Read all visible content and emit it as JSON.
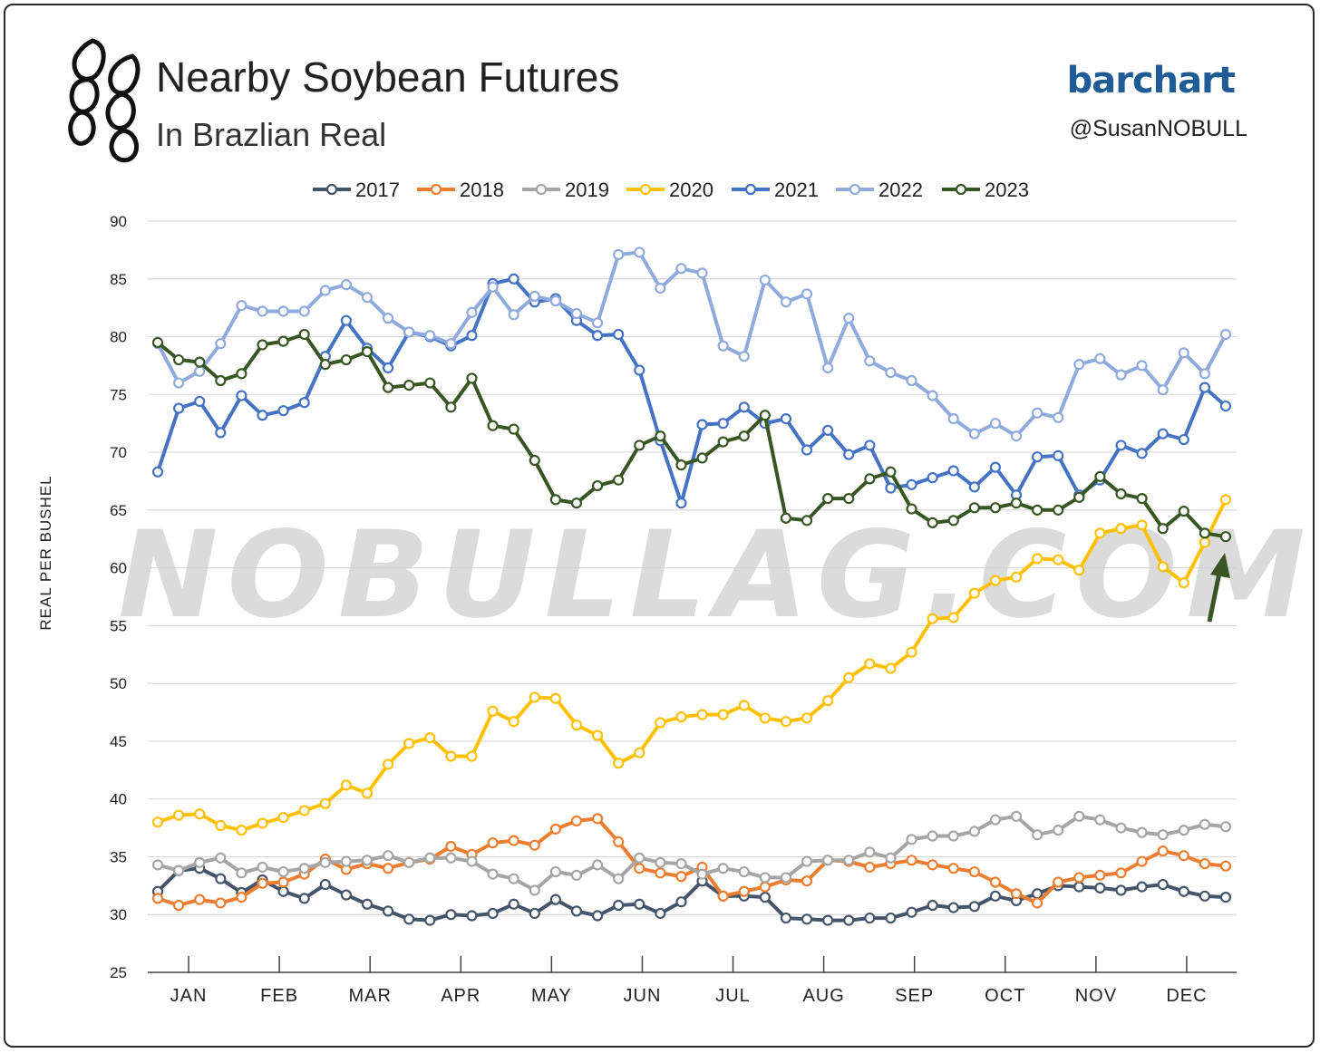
{
  "header": {
    "title": "Nearby Soybean Futures",
    "subtitle": "In Brazlian Real",
    "brand": "barchart",
    "handle": "@SusanNOBULL",
    "logo_icon": "soybean-pods-icon"
  },
  "watermark": "NOBULLAG.COM",
  "colors": {
    "2017": "#44546a",
    "2018": "#ed7d31",
    "2019": "#a5a5a5",
    "2020": "#ffc000",
    "2021": "#4472c4",
    "2022": "#8faadc",
    "2023": "#375623",
    "arrow": "#375623",
    "grid": "#d9d9d9"
  },
  "chart_data": {
    "type": "line",
    "ylabel": "REAL PER BUSHEL",
    "xlabel": "",
    "ylim": [
      25,
      90
    ],
    "yticks": [
      25,
      30,
      35,
      40,
      45,
      50,
      55,
      60,
      65,
      70,
      75,
      80,
      85,
      90
    ],
    "grid": true,
    "legend_position": "top",
    "months": [
      "JAN",
      "FEB",
      "MAR",
      "APR",
      "MAY",
      "JUN",
      "JUL",
      "AUG",
      "SEP",
      "OCT",
      "NOV",
      "DEC"
    ],
    "x_unit": "week of year",
    "series": [
      {
        "name": "2017",
        "values": [
          32.0,
          33.8,
          34.0,
          33.1,
          31.9,
          33.0,
          32.0,
          31.4,
          32.6,
          31.7,
          30.9,
          30.3,
          29.6,
          29.5,
          30.0,
          29.9,
          30.1,
          30.9,
          30.1,
          31.3,
          30.3,
          29.9,
          30.8,
          30.9,
          30.1,
          31.1,
          32.9,
          31.6,
          31.6,
          31.5,
          29.7,
          29.6,
          29.5,
          29.5,
          29.7,
          29.7,
          30.2,
          30.8,
          30.6,
          30.7,
          31.6,
          31.2,
          31.8,
          32.5,
          32.4,
          32.3,
          32.1,
          32.4,
          32.6,
          32.0,
          31.6,
          31.5
        ]
      },
      {
        "name": "2018",
        "values": [
          31.4,
          30.8,
          31.3,
          31.0,
          31.5,
          32.7,
          32.8,
          33.5,
          34.8,
          33.9,
          34.4,
          34.0,
          34.5,
          34.8,
          35.9,
          35.2,
          36.2,
          36.4,
          36.0,
          37.4,
          38.1,
          38.3,
          36.3,
          34.0,
          33.6,
          33.3,
          34.1,
          31.6,
          32.0,
          32.4,
          33.0,
          32.9,
          34.7,
          34.6,
          34.1,
          34.4,
          34.7,
          34.3,
          34.0,
          33.7,
          32.8,
          31.8,
          31.0,
          32.8,
          33.2,
          33.4,
          33.6,
          34.6,
          35.5,
          35.1,
          34.4,
          34.2
        ]
      },
      {
        "name": "2019",
        "values": [
          34.3,
          33.8,
          34.5,
          34.9,
          33.6,
          34.1,
          33.7,
          34.0,
          34.5,
          34.6,
          34.7,
          35.1,
          34.5,
          34.9,
          34.9,
          34.6,
          33.5,
          33.1,
          32.1,
          33.7,
          33.4,
          34.3,
          33.1,
          34.9,
          34.5,
          34.4,
          33.5,
          34.0,
          33.7,
          33.2,
          33.2,
          34.6,
          34.7,
          34.7,
          35.4,
          34.9,
          36.5,
          36.8,
          36.8,
          37.2,
          38.2,
          38.5,
          36.9,
          37.3,
          38.5,
          38.2,
          37.5,
          37.1,
          36.9,
          37.3,
          37.8,
          37.6
        ]
      },
      {
        "name": "2020",
        "values": [
          38.0,
          38.6,
          38.7,
          37.7,
          37.3,
          37.9,
          38.4,
          39.0,
          39.6,
          41.2,
          40.5,
          43.0,
          44.8,
          45.3,
          43.7,
          43.7,
          47.6,
          46.7,
          48.8,
          48.7,
          46.4,
          45.5,
          43.1,
          44.0,
          46.6,
          47.1,
          47.3,
          47.3,
          48.1,
          47.0,
          46.7,
          47.0,
          48.5,
          50.5,
          51.7,
          51.3,
          52.7,
          55.6,
          55.7,
          57.8,
          58.9,
          59.2,
          60.8,
          60.7,
          59.8,
          63.0,
          63.4,
          63.7,
          60.1,
          58.7,
          62.2,
          65.9
        ]
      },
      {
        "name": "2021",
        "values": [
          68.3,
          73.8,
          74.4,
          71.7,
          74.9,
          73.2,
          73.6,
          74.3,
          78.3,
          81.4,
          79.0,
          77.3,
          80.4,
          80.0,
          79.2,
          80.1,
          84.6,
          85.0,
          83.0,
          83.3,
          81.4,
          80.1,
          80.2,
          77.1,
          71.0,
          65.6,
          72.4,
          72.5,
          73.9,
          72.5,
          72.9,
          70.2,
          71.9,
          69.8,
          70.6,
          66.9,
          67.2,
          67.8,
          68.4,
          67.0,
          68.7,
          66.3,
          69.6,
          69.7,
          66.3,
          67.6,
          70.6,
          69.9,
          71.6,
          71.1,
          75.6,
          74.0
        ]
      },
      {
        "name": "2022",
        "values": [
          79.4,
          76.0,
          77.0,
          79.4,
          82.7,
          82.2,
          82.2,
          82.2,
          84.0,
          84.5,
          83.4,
          81.6,
          80.4,
          80.1,
          79.4,
          82.1,
          84.3,
          81.9,
          83.5,
          83.1,
          82.0,
          81.2,
          87.1,
          87.3,
          84.2,
          85.9,
          85.5,
          79.2,
          78.3,
          84.9,
          83.0,
          83.7,
          77.3,
          81.6,
          77.9,
          76.9,
          76.2,
          74.9,
          72.9,
          71.6,
          72.5,
          71.4,
          73.4,
          73.0,
          77.6,
          78.1,
          76.7,
          77.5,
          75.4,
          78.6,
          76.8,
          80.2
        ]
      },
      {
        "name": "2023",
        "values": [
          79.5,
          78.0,
          77.8,
          76.2,
          76.8,
          79.3,
          79.6,
          80.2,
          77.6,
          78.0,
          78.7,
          75.6,
          75.8,
          76.0,
          73.9,
          76.4,
          72.3,
          72.0,
          69.3,
          65.9,
          65.6,
          67.1,
          67.6,
          70.6,
          71.4,
          68.9,
          69.5,
          70.9,
          71.4,
          73.2,
          64.3,
          64.1,
          66.0,
          66.0,
          67.7,
          68.3,
          65.1,
          63.9,
          64.1,
          65.2,
          65.2,
          65.6,
          65.0,
          65.0,
          66.1,
          67.9,
          66.4,
          66.0,
          63.4,
          64.9,
          63.0,
          62.7
        ]
      }
    ]
  }
}
